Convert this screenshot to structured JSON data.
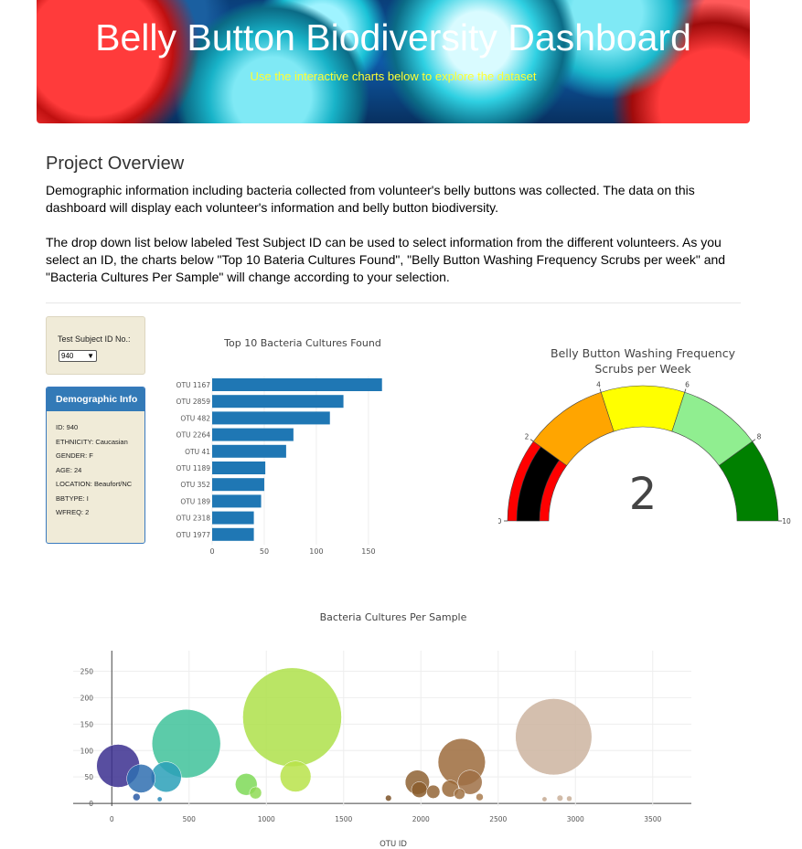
{
  "header": {
    "title": "Belly Button Biodiversity Dashboard",
    "subtitle": "Use the interactive charts below to explore the dataset"
  },
  "overview": {
    "heading": "Project Overview",
    "paragraph1": "Demographic information including bacteria collected from volunteer's belly buttons was collected. The data on this dashboard will display each volunteer's information and belly button biodiversity.",
    "paragraph2": "The drop down list below labeled Test Subject ID can be used to select information from the different volunteers. As you select an ID, the charts below \"Top 10 Bateria Cultures Found\", \"Belly Button Washing Frequency Scrubs per week\" and \"Bacteria Cultures Per Sample\" will change according to your selection."
  },
  "selector": {
    "label": "Test Subject ID No.:",
    "selected": "940"
  },
  "demographics": {
    "title": "Demographic Info",
    "rows": [
      "ID: 940",
      "ETHNICITY: Caucasian",
      "GENDER: F",
      "AGE: 24",
      "LOCATION: Beaufort/NC",
      "BBTYPE: I",
      "WFREQ: 2"
    ]
  },
  "colors": {
    "bar": "#1f77b4",
    "title_yellow": "#ffff33",
    "panel_bg": "#f0ebd8",
    "panel_head": "#337ab7"
  },
  "chart_data": [
    {
      "type": "bar",
      "orientation": "horizontal",
      "title": "Top 10 Bacteria Cultures Found",
      "categories": [
        "OTU 1167",
        "OTU 2859",
        "OTU 482",
        "OTU 2264",
        "OTU 41",
        "OTU 1189",
        "OTU 352",
        "OTU 189",
        "OTU 2318",
        "OTU 1977"
      ],
      "values": [
        163,
        126,
        113,
        78,
        71,
        51,
        50,
        47,
        40,
        40
      ],
      "xticks": [
        "0",
        "50",
        "100",
        "150"
      ],
      "xlim": [
        0,
        165
      ]
    },
    {
      "type": "gauge",
      "title": "Belly Button Washing Frequency",
      "subtitle": "Scrubs per Week",
      "value": 2,
      "display_value": "2",
      "range": [
        0,
        10
      ],
      "ticks": [
        "0",
        "2",
        "4",
        "6",
        "8",
        "10"
      ],
      "steps": [
        {
          "range": [
            0,
            2
          ],
          "color": "#ff0000"
        },
        {
          "range": [
            2,
            4
          ],
          "color": "#ffa500"
        },
        {
          "range": [
            4,
            6
          ],
          "color": "#ffff00"
        },
        {
          "range": [
            6,
            8
          ],
          "color": "#90ee90"
        },
        {
          "range": [
            8,
            10
          ],
          "color": "#008000"
        }
      ],
      "bar_color": "#000000"
    },
    {
      "type": "scatter",
      "mode": "bubble",
      "title": "Bacteria Cultures Per Sample",
      "xlabel": "OTU ID",
      "xticks": [
        "0",
        "500",
        "1000",
        "1500",
        "2000",
        "2500",
        "3000",
        "3500"
      ],
      "yticks": [
        "0",
        "50",
        "100",
        "150",
        "200",
        "250"
      ],
      "xlim": [
        -250,
        3750
      ],
      "ylim": [
        -5,
        275
      ],
      "points": [
        {
          "x": 41,
          "y": 71,
          "size": 71,
          "color": "#3b2f8f"
        },
        {
          "x": 189,
          "y": 47,
          "size": 47,
          "color": "#2f6fb0"
        },
        {
          "x": 352,
          "y": 50,
          "size": 50,
          "color": "#2aa0b8"
        },
        {
          "x": 482,
          "y": 113,
          "size": 113,
          "color": "#3fc29a"
        },
        {
          "x": 1167,
          "y": 163,
          "size": 163,
          "color": "#aee04a"
        },
        {
          "x": 1189,
          "y": 51,
          "size": 51,
          "color": "#b9e34a"
        },
        {
          "x": 870,
          "y": 36,
          "size": 36,
          "color": "#7ed957"
        },
        {
          "x": 930,
          "y": 20,
          "size": 20,
          "color": "#8fdb55"
        },
        {
          "x": 160,
          "y": 12,
          "size": 12,
          "color": "#2a5aa6"
        },
        {
          "x": 310,
          "y": 8,
          "size": 8,
          "color": "#2a88b8"
        },
        {
          "x": 2264,
          "y": 78,
          "size": 78,
          "color": "#9c6b3c"
        },
        {
          "x": 2318,
          "y": 40,
          "size": 40,
          "color": "#9f7045"
        },
        {
          "x": 1977,
          "y": 40,
          "size": 40,
          "color": "#8e6132"
        },
        {
          "x": 1990,
          "y": 26,
          "size": 26,
          "color": "#8a5c2c"
        },
        {
          "x": 2080,
          "y": 22,
          "size": 22,
          "color": "#936536"
        },
        {
          "x": 2190,
          "y": 28,
          "size": 28,
          "color": "#9a6a3a"
        },
        {
          "x": 2250,
          "y": 18,
          "size": 18,
          "color": "#a07244"
        },
        {
          "x": 2380,
          "y": 12,
          "size": 12,
          "color": "#a97c50"
        },
        {
          "x": 2859,
          "y": 126,
          "size": 126,
          "color": "#cdb4a0"
        },
        {
          "x": 1790,
          "y": 10,
          "size": 10,
          "color": "#7c5228"
        },
        {
          "x": 2800,
          "y": 8,
          "size": 8,
          "color": "#c4a890"
        },
        {
          "x": 2900,
          "y": 10,
          "size": 10,
          "color": "#cab09a"
        },
        {
          "x": 2960,
          "y": 9,
          "size": 9,
          "color": "#c8ae98"
        }
      ]
    }
  ]
}
